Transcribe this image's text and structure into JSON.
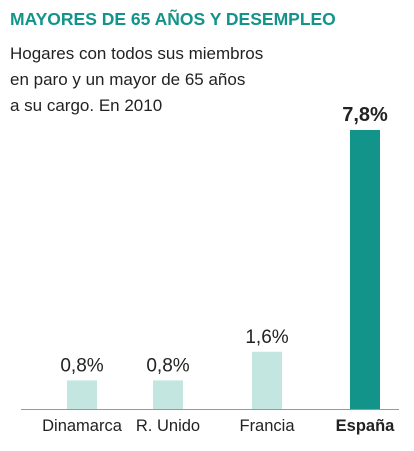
{
  "chart_data": {
    "type": "bar",
    "title": "MAYORES DE 65 AÑOS Y DESEMPLEO",
    "subtitle_lines": [
      "Hogares con todos sus miembros",
      "en paro y un mayor de 65 años",
      "a su cargo. En 2010"
    ],
    "categories": [
      "Dinamarca",
      "R. Unido",
      "Francia",
      "España"
    ],
    "values": [
      0.8,
      0.8,
      1.6,
      7.8
    ],
    "value_labels": [
      "0,8%",
      "0,8%",
      "1,6%",
      "7,8%"
    ],
    "highlight_index": 3,
    "xlabel": "",
    "ylabel": "",
    "ylim": [
      0,
      7.8
    ],
    "grid": false,
    "colors": {
      "title": "#13948a",
      "bar": "#c3e6e1",
      "highlight_bar": "#13948a",
      "baseline": "#999999",
      "text": "#222222"
    }
  }
}
